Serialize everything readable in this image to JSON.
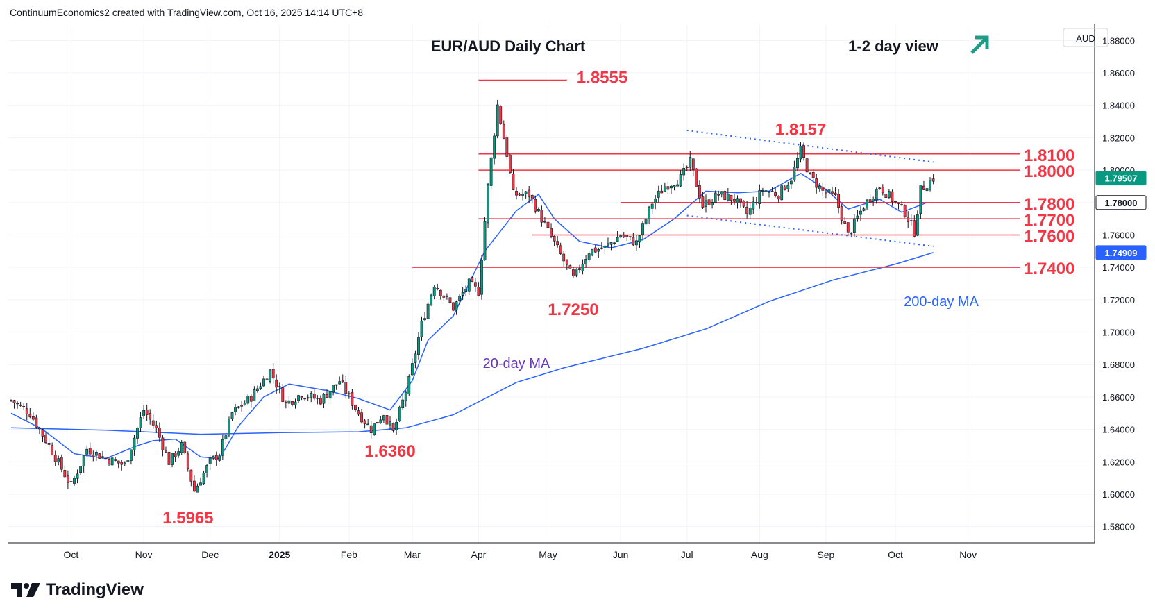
{
  "header": {
    "attribution": "ContinuumEconomics2 created with TradingView.com, Oct 16, 2025 14:14 UTC+8"
  },
  "brand": {
    "name": "TradingView"
  },
  "chart_data": {
    "type": "candlestick",
    "title": "EUR/AUD Daily Chart",
    "view": {
      "label": "1-2 day view",
      "direction": "up",
      "color": "#1f9c87"
    },
    "currency_label": "AUD",
    "ylim": [
      1.57,
      1.89
    ],
    "y_ticks": [
      "1.88000",
      "1.86000",
      "1.84000",
      "1.82000",
      "1.80000",
      "1.78000",
      "1.76000",
      "1.74000",
      "1.72000",
      "1.70000",
      "1.68000",
      "1.66000",
      "1.64000",
      "1.62000",
      "1.60000",
      "1.58000"
    ],
    "x_ticks": [
      {
        "label": "Oct",
        "bar": 19
      },
      {
        "label": "Nov",
        "bar": 42
      },
      {
        "label": "Dec",
        "bar": 63
      },
      {
        "label": "2025",
        "bar": 85
      },
      {
        "label": "Feb",
        "bar": 107
      },
      {
        "label": "Mar",
        "bar": 127
      },
      {
        "label": "Apr",
        "bar": 148
      },
      {
        "label": "May",
        "bar": 170
      },
      {
        "label": "Jun",
        "bar": 193
      },
      {
        "label": "Jul",
        "bar": 214
      },
      {
        "label": "Aug",
        "bar": 237
      },
      {
        "label": "Sep",
        "bar": 258
      },
      {
        "label": "Oct",
        "bar": 280
      },
      {
        "label": "Nov",
        "bar": 303
      }
    ],
    "price_badges": [
      {
        "value": "1.79507",
        "price": 1.79507,
        "bg": "#089981",
        "fg": "#ffffff"
      },
      {
        "value": "1.78000",
        "price": 1.78,
        "bg": "#ffffff",
        "fg": "#131722",
        "border": "#131722"
      },
      {
        "value": "1.74909",
        "price": 1.74909,
        "bg": "#2962ff",
        "fg": "#ffffff"
      }
    ],
    "levels": [
      {
        "label": "1.8100",
        "price": 1.81,
        "start_bar": 148
      },
      {
        "label": "1.8000",
        "price": 1.8,
        "start_bar": 148
      },
      {
        "label": "1.7800",
        "price": 1.78,
        "start_bar": 193
      },
      {
        "label": "1.7700",
        "price": 1.77,
        "start_bar": 148
      },
      {
        "label": "1.7600",
        "price": 1.76,
        "start_bar": 165
      },
      {
        "label": "1.7400",
        "price": 1.74,
        "start_bar": 127
      }
    ],
    "annotations": [
      {
        "label": "1.8555",
        "price": 1.8555,
        "bar": 155
      },
      {
        "label": "1.8157",
        "price": 1.8157,
        "bar": 250
      },
      {
        "label": "1.7250",
        "price": 1.725,
        "bar": 178
      },
      {
        "label": "1.6360",
        "price": 1.636,
        "bar": 120
      },
      {
        "label": "1.5965",
        "price": 1.5965,
        "bar": 56
      }
    ],
    "ma_labels": [
      {
        "label": "20-day MA",
        "color": "#673ab7"
      },
      {
        "label": "200-day MA",
        "color": "#2962ff"
      }
    ],
    "trendlines": [
      {
        "style": "dotted",
        "points": [
          {
            "bar": 214,
            "price": 1.8245
          },
          {
            "bar": 292,
            "price": 1.805
          }
        ]
      },
      {
        "style": "dotted",
        "points": [
          {
            "bar": 214,
            "price": 1.772
          },
          {
            "bar": 292,
            "price": 1.753
          }
        ]
      }
    ],
    "ma200_points": [
      {
        "bar": 0,
        "price": 1.641
      },
      {
        "bar": 30,
        "price": 1.6395
      },
      {
        "bar": 60,
        "price": 1.637
      },
      {
        "bar": 85,
        "price": 1.638
      },
      {
        "bar": 110,
        "price": 1.6385
      },
      {
        "bar": 125,
        "price": 1.641
      },
      {
        "bar": 140,
        "price": 1.649
      },
      {
        "bar": 160,
        "price": 1.669
      },
      {
        "bar": 175,
        "price": 1.678
      },
      {
        "bar": 200,
        "price": 1.69
      },
      {
        "bar": 220,
        "price": 1.702
      },
      {
        "bar": 240,
        "price": 1.719
      },
      {
        "bar": 260,
        "price": 1.732
      },
      {
        "bar": 280,
        "price": 1.742
      },
      {
        "bar": 292,
        "price": 1.7491
      }
    ],
    "ma20_points": [
      {
        "bar": 0,
        "price": 1.65
      },
      {
        "bar": 10,
        "price": 1.64
      },
      {
        "bar": 20,
        "price": 1.625
      },
      {
        "bar": 30,
        "price": 1.622
      },
      {
        "bar": 40,
        "price": 1.63
      },
      {
        "bar": 45,
        "price": 1.633
      },
      {
        "bar": 52,
        "price": 1.634
      },
      {
        "bar": 60,
        "price": 1.623
      },
      {
        "bar": 66,
        "price": 1.622
      },
      {
        "bar": 72,
        "price": 1.642
      },
      {
        "bar": 80,
        "price": 1.66
      },
      {
        "bar": 88,
        "price": 1.668
      },
      {
        "bar": 100,
        "price": 1.664
      },
      {
        "bar": 110,
        "price": 1.659
      },
      {
        "bar": 120,
        "price": 1.652
      },
      {
        "bar": 127,
        "price": 1.67
      },
      {
        "bar": 132,
        "price": 1.695
      },
      {
        "bar": 140,
        "price": 1.71
      },
      {
        "bar": 150,
        "price": 1.75
      },
      {
        "bar": 160,
        "price": 1.775
      },
      {
        "bar": 167,
        "price": 1.785
      },
      {
        "bar": 172,
        "price": 1.77
      },
      {
        "bar": 180,
        "price": 1.756
      },
      {
        "bar": 190,
        "price": 1.752
      },
      {
        "bar": 200,
        "price": 1.757
      },
      {
        "bar": 210,
        "price": 1.77
      },
      {
        "bar": 220,
        "price": 1.787
      },
      {
        "bar": 230,
        "price": 1.786
      },
      {
        "bar": 240,
        "price": 1.787
      },
      {
        "bar": 250,
        "price": 1.798
      },
      {
        "bar": 258,
        "price": 1.788
      },
      {
        "bar": 265,
        "price": 1.776
      },
      {
        "bar": 275,
        "price": 1.782
      },
      {
        "bar": 282,
        "price": 1.774
      },
      {
        "bar": 290,
        "price": 1.78
      }
    ],
    "price_anchors": [
      {
        "bar": 0,
        "price": 1.658
      },
      {
        "bar": 6,
        "price": 1.65
      },
      {
        "bar": 12,
        "price": 1.63
      },
      {
        "bar": 19,
        "price": 1.605
      },
      {
        "bar": 24,
        "price": 1.628
      },
      {
        "bar": 30,
        "price": 1.622
      },
      {
        "bar": 36,
        "price": 1.618
      },
      {
        "bar": 42,
        "price": 1.652
      },
      {
        "bar": 46,
        "price": 1.64
      },
      {
        "bar": 50,
        "price": 1.62
      },
      {
        "bar": 54,
        "price": 1.63
      },
      {
        "bar": 58,
        "price": 1.602
      },
      {
        "bar": 63,
        "price": 1.62
      },
      {
        "bar": 66,
        "price": 1.625
      },
      {
        "bar": 70,
        "price": 1.65
      },
      {
        "bar": 76,
        "price": 1.66
      },
      {
        "bar": 82,
        "price": 1.676
      },
      {
        "bar": 87,
        "price": 1.656
      },
      {
        "bar": 92,
        "price": 1.662
      },
      {
        "bar": 98,
        "price": 1.658
      },
      {
        "bar": 104,
        "price": 1.67
      },
      {
        "bar": 110,
        "price": 1.65
      },
      {
        "bar": 114,
        "price": 1.64
      },
      {
        "bar": 118,
        "price": 1.65
      },
      {
        "bar": 121,
        "price": 1.638
      },
      {
        "bar": 126,
        "price": 1.67
      },
      {
        "bar": 130,
        "price": 1.705
      },
      {
        "bar": 134,
        "price": 1.73
      },
      {
        "bar": 140,
        "price": 1.715
      },
      {
        "bar": 145,
        "price": 1.73
      },
      {
        "bar": 148,
        "price": 1.725
      },
      {
        "bar": 151,
        "price": 1.79
      },
      {
        "bar": 154,
        "price": 1.84
      },
      {
        "bar": 157,
        "price": 1.81
      },
      {
        "bar": 159,
        "price": 1.785
      },
      {
        "bar": 164,
        "price": 1.785
      },
      {
        "bar": 168,
        "price": 1.77
      },
      {
        "bar": 172,
        "price": 1.755
      },
      {
        "bar": 178,
        "price": 1.733
      },
      {
        "bar": 183,
        "price": 1.75
      },
      {
        "bar": 188,
        "price": 1.752
      },
      {
        "bar": 193,
        "price": 1.76
      },
      {
        "bar": 198,
        "price": 1.755
      },
      {
        "bar": 203,
        "price": 1.78
      },
      {
        "bar": 207,
        "price": 1.79
      },
      {
        "bar": 212,
        "price": 1.795
      },
      {
        "bar": 215,
        "price": 1.805
      },
      {
        "bar": 219,
        "price": 1.778
      },
      {
        "bar": 224,
        "price": 1.785
      },
      {
        "bar": 229,
        "price": 1.782
      },
      {
        "bar": 233,
        "price": 1.773
      },
      {
        "bar": 238,
        "price": 1.788
      },
      {
        "bar": 243,
        "price": 1.785
      },
      {
        "bar": 247,
        "price": 1.795
      },
      {
        "bar": 250,
        "price": 1.812
      },
      {
        "bar": 253,
        "price": 1.796
      },
      {
        "bar": 257,
        "price": 1.787
      },
      {
        "bar": 261,
        "price": 1.783
      },
      {
        "bar": 265,
        "price": 1.76
      },
      {
        "bar": 270,
        "price": 1.778
      },
      {
        "bar": 275,
        "price": 1.79
      },
      {
        "bar": 279,
        "price": 1.782
      },
      {
        "bar": 283,
        "price": 1.774
      },
      {
        "bar": 286,
        "price": 1.762
      },
      {
        "bar": 288,
        "price": 1.788
      },
      {
        "bar": 292,
        "price": 1.795
      }
    ]
  }
}
